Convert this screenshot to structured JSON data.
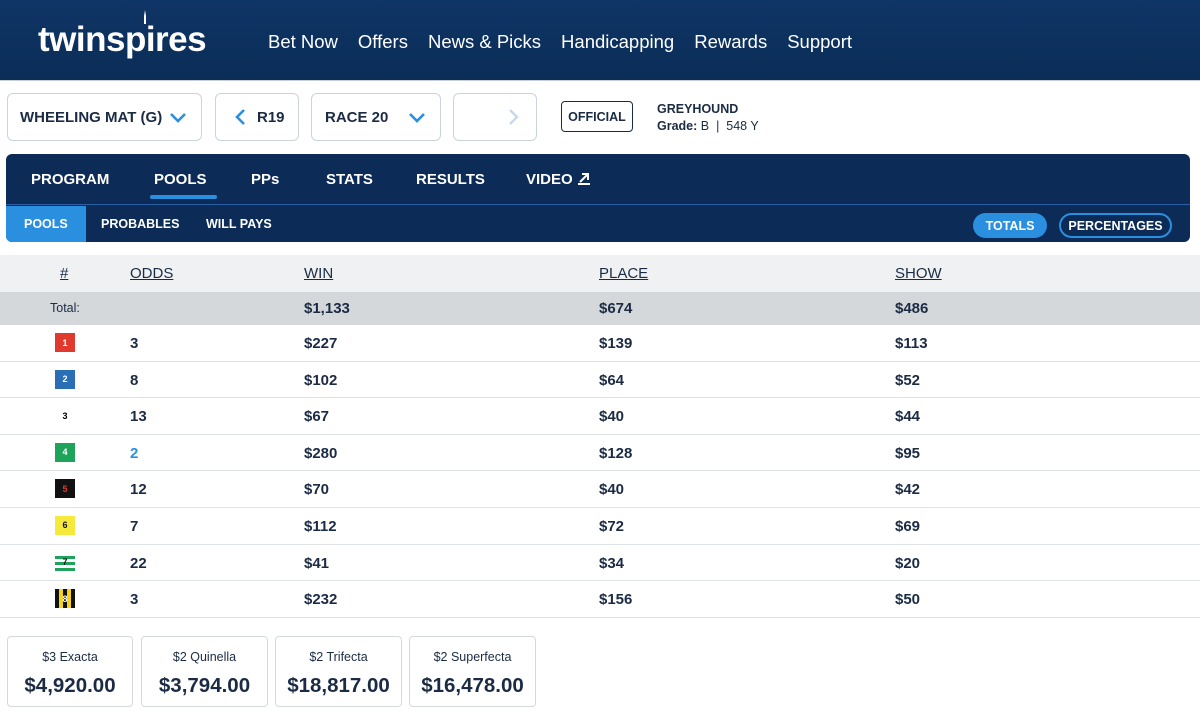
{
  "brand": {
    "logo_text": "twinspires"
  },
  "nav": [
    "Bet Now",
    "Offers",
    "News & Picks",
    "Handicapping",
    "Rewards",
    "Support"
  ],
  "selectors": {
    "track": "WHEELING MAT (G)",
    "prev_race": "R19",
    "race": "RACE 20",
    "next_race": ""
  },
  "race_status": "OFFICIAL",
  "race_info": {
    "breed": "GREYHOUND",
    "grade_label": "Grade:",
    "grade_value": "B",
    "separator": "|",
    "distance": "548 Y"
  },
  "main_tabs": [
    "PROGRAM",
    "POOLS",
    "PPs",
    "STATS",
    "RESULTS",
    "VIDEO"
  ],
  "active_main_tab": "POOLS",
  "sub_tabs": [
    "POOLS",
    "PROBABLES",
    "WILL PAYS"
  ],
  "active_sub_tab": "POOLS",
  "view_toggle": {
    "totals": "TOTALS",
    "percentages": "PERCENTAGES",
    "active": "TOTALS"
  },
  "table": {
    "headers": {
      "num": "#",
      "odds": "ODDS",
      "win": "WIN",
      "place": "PLACE",
      "show": "SHOW"
    },
    "totals": {
      "label": "Total:",
      "win": "$1,133",
      "place": "$674",
      "show": "$486"
    },
    "rows": [
      {
        "num": "1",
        "odds": "3",
        "win": "$227",
        "place": "$139",
        "show": "$113",
        "favorite": false
      },
      {
        "num": "2",
        "odds": "8",
        "win": "$102",
        "place": "$64",
        "show": "$52",
        "favorite": false
      },
      {
        "num": "3",
        "odds": "13",
        "win": "$67",
        "place": "$40",
        "show": "$44",
        "favorite": false
      },
      {
        "num": "4",
        "odds": "2",
        "win": "$280",
        "place": "$128",
        "show": "$95",
        "favorite": true
      },
      {
        "num": "5",
        "odds": "12",
        "win": "$70",
        "place": "$40",
        "show": "$42",
        "favorite": false
      },
      {
        "num": "6",
        "odds": "7",
        "win": "$112",
        "place": "$72",
        "show": "$69",
        "favorite": false
      },
      {
        "num": "7",
        "odds": "22",
        "win": "$41",
        "place": "$34",
        "show": "$20",
        "favorite": false
      },
      {
        "num": "8",
        "odds": "3",
        "win": "$232",
        "place": "$156",
        "show": "$50",
        "favorite": false
      }
    ]
  },
  "exotics": [
    {
      "label": "$3 Exacta",
      "amount": "$4,920.00"
    },
    {
      "label": "$2 Quinella",
      "amount": "$3,794.00"
    },
    {
      "label": "$2 Trifecta",
      "amount": "$18,817.00"
    },
    {
      "label": "$2 Superfecta",
      "amount": "$16,478.00"
    }
  ],
  "colors": {
    "header_bg": "#0c2d58",
    "accent": "#2b8fe0",
    "text": "#1b2b44"
  }
}
